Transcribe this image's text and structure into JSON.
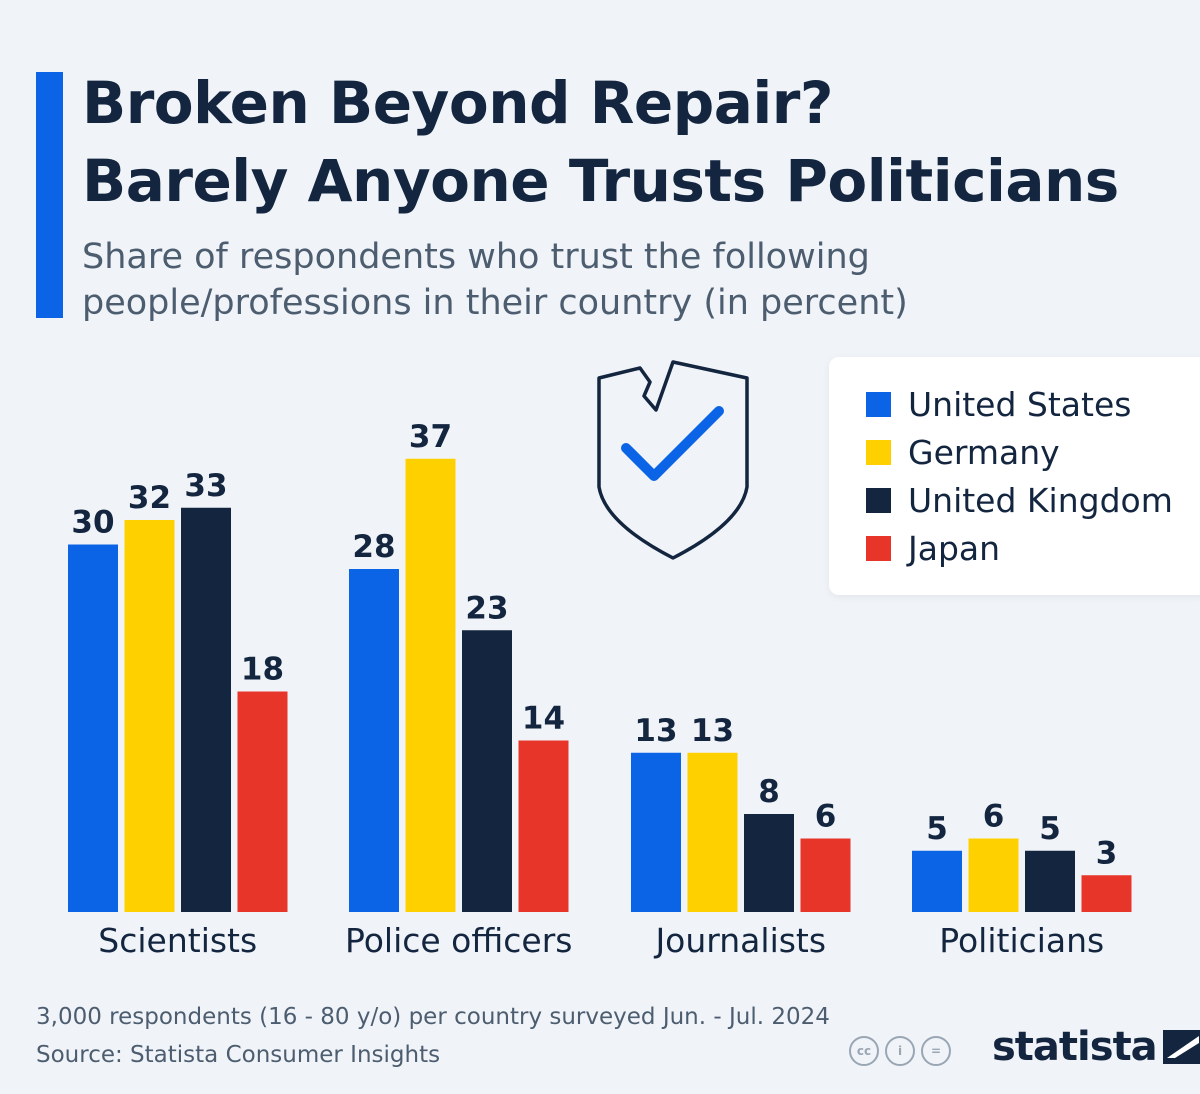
{
  "title_lines": [
    "Broken Beyond Repair?",
    "Barely Anyone Trusts Politicians"
  ],
  "subtitle_lines": [
    "Share of respondents who trust the following",
    "people/professions in their country (in percent)"
  ],
  "colors": {
    "accent": "#0b63e5",
    "United States": "#0b63e5",
    "Germany": "#ffd000",
    "United Kingdom": "#13253f",
    "Japan": "#e8352a",
    "text": "#13253f",
    "background": "#f0f4f8"
  },
  "icons": [
    "broken-shield-check-icon",
    "cc-icon",
    "attribution-icon",
    "no-derivatives-icon",
    "statista-logo-icon"
  ],
  "chart_data": {
    "type": "bar",
    "categories": [
      "Scientists",
      "Police officers",
      "Journalists",
      "Politicians"
    ],
    "series": [
      {
        "name": "United States",
        "values": [
          30,
          28,
          13,
          5
        ]
      },
      {
        "name": "Germany",
        "values": [
          32,
          37,
          13,
          6
        ]
      },
      {
        "name": "United Kingdom",
        "values": [
          33,
          23,
          8,
          5
        ]
      },
      {
        "name": "Japan",
        "values": [
          18,
          14,
          6,
          3
        ]
      }
    ],
    "title": "Broken Beyond Repair? Barely Anyone Trusts Politicians",
    "subtitle": "Share of respondents who trust the following people/professions in their country (in percent)",
    "xlabel": "",
    "ylabel": "",
    "ylim": [
      0,
      37
    ],
    "grid": false,
    "legend": "top-right",
    "data_labels": true
  },
  "footer": {
    "note": "3,000 respondents (16 - 80 y/o) per country surveyed Jun. - Jul. 2024",
    "source": "Source: Statista Consumer Insights",
    "cc_labels": [
      "cc",
      "i",
      "="
    ],
    "brand": "statista"
  }
}
